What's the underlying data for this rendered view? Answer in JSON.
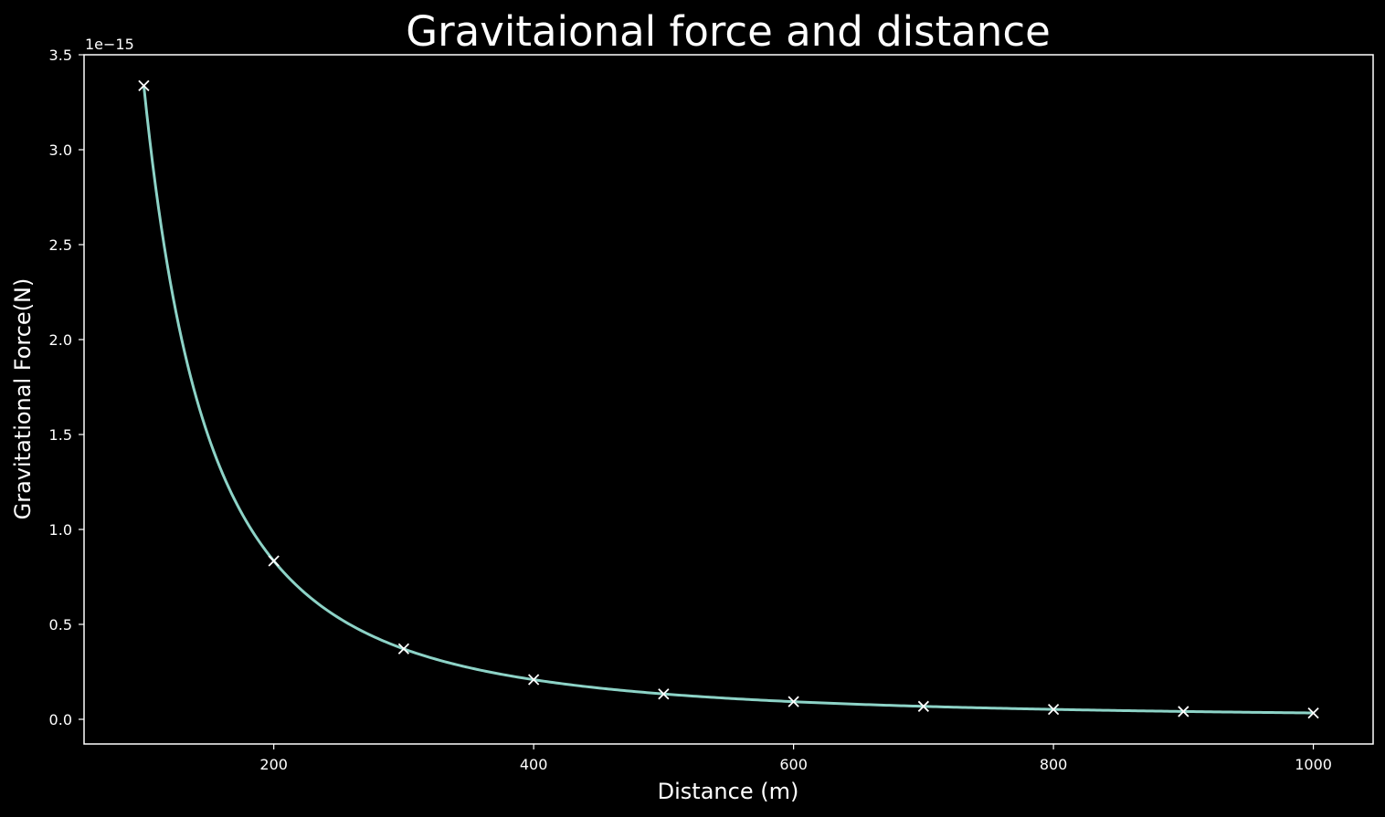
{
  "chart_data": {
    "type": "line",
    "title": "Gravitaional force and distance",
    "xlabel": "Distance (m)",
    "ylabel": "Gravitational Force(N)",
    "offset_text": "1e−15",
    "xlim": [
      54,
      1046
    ],
    "ylim": [
      -0.13,
      3.5
    ],
    "xticks": [
      200,
      400,
      600,
      800,
      1000
    ],
    "xtick_labels": [
      "200",
      "400",
      "600",
      "800",
      "1000"
    ],
    "yticks": [
      0.0,
      0.5,
      1.0,
      1.5,
      2.0,
      2.5,
      3.0,
      3.5
    ],
    "ytick_labels": [
      "0.0",
      "0.5",
      "1.0",
      "1.5",
      "2.0",
      "2.5",
      "3.0",
      "3.5"
    ],
    "y_scale_factor": 1e-15,
    "grid": false,
    "series": [
      {
        "kind": "line",
        "color": "#8dd3c7",
        "x_range": [
          100,
          1000
        ],
        "formula": "F = 3.337e-11 / x^2",
        "coefficient": 3.337e-11
      },
      {
        "kind": "markers",
        "marker": "x",
        "color": "#ffffff",
        "x": [
          100,
          200,
          300,
          400,
          500,
          600,
          700,
          800,
          900,
          1000
        ],
        "y": [
          3.337e-15,
          8.34e-16,
          3.71e-16,
          2.09e-16,
          1.33e-16,
          9.3e-17,
          6.8e-17,
          5.2e-17,
          4.1e-17,
          3.3e-17
        ]
      }
    ],
    "colors": {
      "background": "#000000",
      "axes": "#ffffff",
      "text": "#ffffff"
    }
  }
}
